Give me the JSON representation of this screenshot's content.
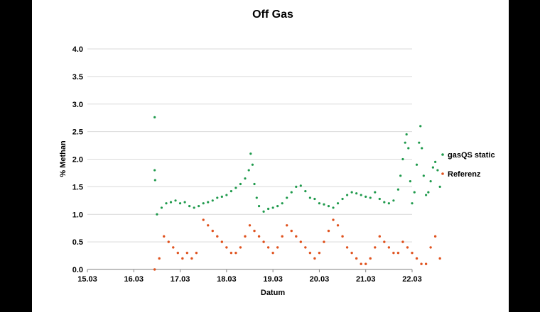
{
  "colors": {
    "background": "#000000",
    "panel": "#ffffff",
    "gasqs": "#1f9a4c",
    "referenz": "#e0531f",
    "grid": "#d9d9d9"
  },
  "chart_data": {
    "type": "scatter",
    "title": "Off Gas",
    "xlabel": "Datum",
    "ylabel": "% Methan",
    "xlim": [
      15.03,
      22.03
    ],
    "ylim": [
      0.0,
      4.0
    ],
    "x_ticks": [
      "15.03",
      "16.03",
      "17.03",
      "18.03",
      "19.03",
      "20.03",
      "21.03",
      "22.03"
    ],
    "y_ticks": [
      "0.0",
      "0.5",
      "1.0",
      "1.5",
      "2.0",
      "2.5",
      "3.0",
      "3.5",
      "4.0"
    ],
    "grid": "horizontal",
    "legend_position": "right",
    "series": [
      {
        "name": "gasQS static",
        "color": "#1f9a4c",
        "x_unit": "days since 15.03",
        "points": [
          [
            1.45,
            2.76
          ],
          [
            1.45,
            1.8
          ],
          [
            1.46,
            1.62
          ],
          [
            1.5,
            1.0
          ],
          [
            1.6,
            1.12
          ],
          [
            1.7,
            1.2
          ],
          [
            1.8,
            1.22
          ],
          [
            1.9,
            1.25
          ],
          [
            2.0,
            1.2
          ],
          [
            2.1,
            1.22
          ],
          [
            2.2,
            1.15
          ],
          [
            2.3,
            1.12
          ],
          [
            2.4,
            1.15
          ],
          [
            2.5,
            1.2
          ],
          [
            2.6,
            1.22
          ],
          [
            2.7,
            1.25
          ],
          [
            2.8,
            1.3
          ],
          [
            2.9,
            1.32
          ],
          [
            3.0,
            1.35
          ],
          [
            3.1,
            1.42
          ],
          [
            3.2,
            1.48
          ],
          [
            3.3,
            1.55
          ],
          [
            3.4,
            1.65
          ],
          [
            3.48,
            1.8
          ],
          [
            3.52,
            2.1
          ],
          [
            3.56,
            1.9
          ],
          [
            3.6,
            1.55
          ],
          [
            3.65,
            1.3
          ],
          [
            3.7,
            1.15
          ],
          [
            3.8,
            1.05
          ],
          [
            3.9,
            1.1
          ],
          [
            4.0,
            1.12
          ],
          [
            4.1,
            1.15
          ],
          [
            4.2,
            1.2
          ],
          [
            4.3,
            1.3
          ],
          [
            4.4,
            1.4
          ],
          [
            4.5,
            1.5
          ],
          [
            4.6,
            1.52
          ],
          [
            4.7,
            1.42
          ],
          [
            4.8,
            1.3
          ],
          [
            4.9,
            1.28
          ],
          [
            5.0,
            1.2
          ],
          [
            5.1,
            1.18
          ],
          [
            5.2,
            1.15
          ],
          [
            5.3,
            1.12
          ],
          [
            5.4,
            1.2
          ],
          [
            5.5,
            1.28
          ],
          [
            5.6,
            1.35
          ],
          [
            5.7,
            1.4
          ],
          [
            5.8,
            1.38
          ],
          [
            5.9,
            1.35
          ],
          [
            6.0,
            1.32
          ],
          [
            6.1,
            1.3
          ],
          [
            6.2,
            1.4
          ],
          [
            6.3,
            1.28
          ],
          [
            6.4,
            1.22
          ],
          [
            6.5,
            1.2
          ],
          [
            6.6,
            1.25
          ],
          [
            6.7,
            1.45
          ],
          [
            6.75,
            1.7
          ],
          [
            6.8,
            2.0
          ],
          [
            6.85,
            2.3
          ],
          [
            6.88,
            2.45
          ],
          [
            6.92,
            2.2
          ],
          [
            6.96,
            1.6
          ],
          [
            7.0,
            1.2
          ],
          [
            7.05,
            1.4
          ],
          [
            7.1,
            1.9
          ],
          [
            7.15,
            2.3
          ],
          [
            7.18,
            2.6
          ],
          [
            7.21,
            2.2
          ],
          [
            7.25,
            1.7
          ],
          [
            7.3,
            1.35
          ],
          [
            7.35,
            1.4
          ],
          [
            7.4,
            1.6
          ],
          [
            7.45,
            1.85
          ],
          [
            7.5,
            1.95
          ],
          [
            7.55,
            1.8
          ],
          [
            7.6,
            1.5
          ]
        ]
      },
      {
        "name": "Referenz",
        "color": "#e0531f",
        "x_unit": "days since 15.03",
        "points": [
          [
            1.45,
            0.0
          ],
          [
            1.55,
            0.2
          ],
          [
            1.65,
            0.6
          ],
          [
            1.75,
            0.5
          ],
          [
            1.85,
            0.4
          ],
          [
            1.95,
            0.3
          ],
          [
            2.05,
            0.2
          ],
          [
            2.15,
            0.3
          ],
          [
            2.25,
            0.2
          ],
          [
            2.35,
            0.3
          ],
          [
            2.5,
            0.9
          ],
          [
            2.6,
            0.8
          ],
          [
            2.7,
            0.7
          ],
          [
            2.8,
            0.6
          ],
          [
            2.9,
            0.5
          ],
          [
            3.0,
            0.4
          ],
          [
            3.1,
            0.3
          ],
          [
            3.2,
            0.3
          ],
          [
            3.3,
            0.4
          ],
          [
            3.4,
            0.6
          ],
          [
            3.5,
            0.8
          ],
          [
            3.6,
            0.7
          ],
          [
            3.7,
            0.6
          ],
          [
            3.8,
            0.5
          ],
          [
            3.9,
            0.4
          ],
          [
            4.0,
            0.3
          ],
          [
            4.1,
            0.4
          ],
          [
            4.2,
            0.6
          ],
          [
            4.3,
            0.8
          ],
          [
            4.4,
            0.7
          ],
          [
            4.5,
            0.6
          ],
          [
            4.6,
            0.5
          ],
          [
            4.7,
            0.4
          ],
          [
            4.8,
            0.3
          ],
          [
            4.9,
            0.2
          ],
          [
            5.0,
            0.3
          ],
          [
            5.1,
            0.5
          ],
          [
            5.2,
            0.7
          ],
          [
            5.3,
            0.9
          ],
          [
            5.4,
            0.8
          ],
          [
            5.5,
            0.6
          ],
          [
            5.6,
            0.4
          ],
          [
            5.7,
            0.3
          ],
          [
            5.8,
            0.2
          ],
          [
            5.9,
            0.1
          ],
          [
            6.0,
            0.1
          ],
          [
            6.1,
            0.2
          ],
          [
            6.2,
            0.4
          ],
          [
            6.3,
            0.6
          ],
          [
            6.4,
            0.5
          ],
          [
            6.5,
            0.4
          ],
          [
            6.6,
            0.3
          ],
          [
            6.7,
            0.3
          ],
          [
            6.8,
            0.5
          ],
          [
            6.9,
            0.4
          ],
          [
            7.0,
            0.3
          ],
          [
            7.1,
            0.2
          ],
          [
            7.2,
            0.1
          ],
          [
            7.3,
            0.1
          ],
          [
            7.4,
            0.4
          ],
          [
            7.5,
            0.6
          ],
          [
            7.6,
            0.2
          ]
        ]
      }
    ]
  }
}
